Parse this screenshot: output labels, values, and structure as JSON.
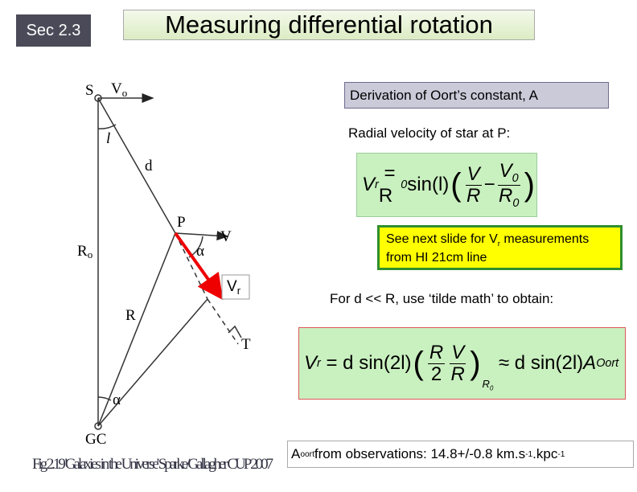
{
  "header": {
    "section": "Sec 2.3",
    "title": "Measuring differential rotation"
  },
  "diagram": {
    "labels": {
      "S": "S",
      "Vo": "V",
      "Vo_sub": "o",
      "l": "l",
      "d": "d",
      "P": "P",
      "V": "V",
      "alpha1": "α",
      "Ro": "R",
      "Ro_sub": "o",
      "Vr": "V",
      "Vr_sub": "r",
      "R": "R",
      "T": "T",
      "alpha2": "α",
      "GC": "GC"
    },
    "caption": "Fig 2.19 'Galaxies in the Universe' Sparke/Gallagher CUP 2007"
  },
  "panel": {
    "derivation": "Derivation of Oort’s constant, A",
    "radial": "Radial velocity of star at P:",
    "eq1": [
      "V",
      "r",
      "= R",
      "0",
      "sin(l)",
      "V",
      "R",
      "V",
      "0",
      "R",
      "0"
    ],
    "note": [
      "See next slide for V",
      "r",
      " measurements from HI 21cm line"
    ],
    "tilde": "For d << R, use ‘tilde math’ to obtain:",
    "eq2": [
      "V",
      "r",
      "= d",
      "sin(2l)",
      "R",
      "V",
      "2",
      "R",
      "R",
      "0",
      "d",
      "sin(2l)",
      "A",
      "Oort"
    ],
    "result": [
      "A",
      "oort",
      " from observations: 14.8+/-0.8 km.s",
      "-1",
      ".kpc",
      "-1"
    ]
  }
}
